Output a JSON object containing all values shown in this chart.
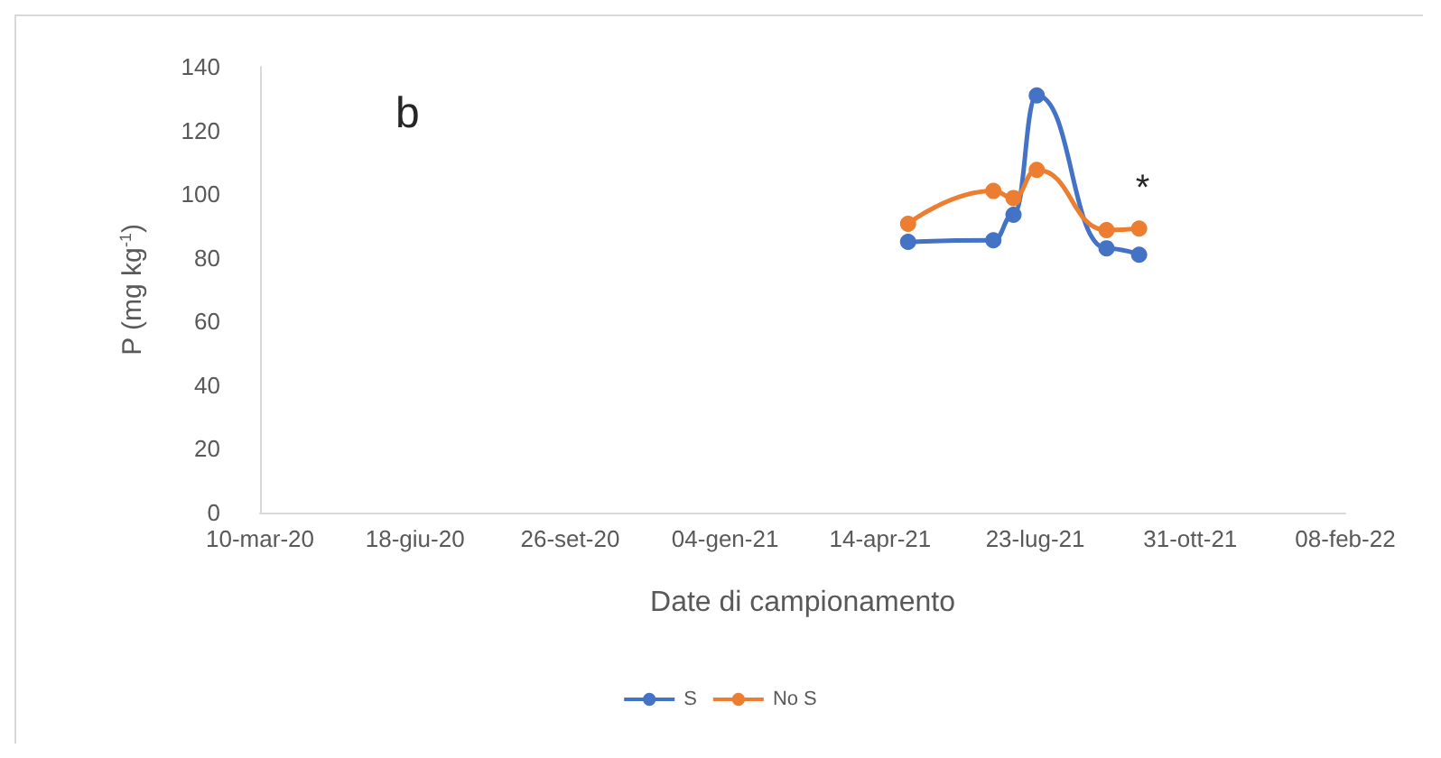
{
  "chart_data": {
    "type": "line",
    "xlabel": "Date di campionamento",
    "ylabel": "P (mg kg$^{-1}$)",
    "annotations": [
      "b",
      "*"
    ],
    "x": [
      "2021-05-02",
      "2021-06-26",
      "2021-07-09",
      "2021-07-24",
      "2021-09-07",
      "2021-09-28"
    ],
    "series": [
      {
        "name": "S",
        "color": "#4472c4",
        "values": [
          85,
          85.5,
          93.5,
          131,
          83,
          81
        ]
      },
      {
        "name": "No S",
        "color": "#ed7d31",
        "values": [
          90.7,
          101,
          98.8,
          107.6,
          88.7,
          89.2
        ]
      }
    ],
    "xlim": [
      "2020-03-10",
      "2022-02-08"
    ],
    "xticks": [
      {
        "value": "2020-03-10",
        "label": "10-mar-20"
      },
      {
        "value": "2020-06-18",
        "label": "18-giu-20"
      },
      {
        "value": "2020-09-26",
        "label": "26-set-20"
      },
      {
        "value": "2021-01-04",
        "label": "04-gen-21"
      },
      {
        "value": "2021-04-14",
        "label": "14-apr-21"
      },
      {
        "value": "2021-07-23",
        "label": "23-lug-21"
      },
      {
        "value": "2021-10-31",
        "label": "31-ott-21"
      },
      {
        "value": "2022-02-08",
        "label": "08-feb-22"
      }
    ],
    "ylim": [
      0,
      140
    ],
    "yticks": [
      0,
      20,
      40,
      60,
      80,
      100,
      120,
      140
    ],
    "grid": false,
    "legend": "bottom",
    "marker": "circle",
    "line_style": "solid"
  }
}
